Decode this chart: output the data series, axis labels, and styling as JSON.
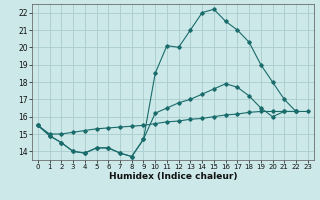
{
  "xlabel": "Humidex (Indice chaleur)",
  "bg_color": "#cce8e8",
  "grid_color": "#aacccc",
  "line_color": "#1a6b6b",
  "xlim": [
    -0.5,
    23.5
  ],
  "ylim": [
    13.5,
    22.5
  ],
  "xticks": [
    0,
    1,
    2,
    3,
    4,
    5,
    6,
    7,
    8,
    9,
    10,
    11,
    12,
    13,
    14,
    15,
    16,
    17,
    18,
    19,
    20,
    21,
    22,
    23
  ],
  "yticks": [
    14,
    15,
    16,
    17,
    18,
    19,
    20,
    21,
    22
  ],
  "line1_x": [
    0,
    1,
    2,
    3,
    4,
    5,
    6,
    7,
    8,
    9,
    10,
    11,
    12,
    13,
    14,
    15,
    16,
    17,
    18,
    19,
    20,
    21,
    22
  ],
  "line1_y": [
    15.5,
    14.9,
    14.5,
    14.0,
    13.9,
    14.2,
    14.2,
    13.9,
    13.7,
    14.7,
    18.5,
    20.1,
    20.0,
    21.0,
    22.0,
    22.2,
    21.5,
    21.0,
    20.3,
    19.0,
    18.0,
    17.0,
    16.3
  ],
  "line2_x": [
    0,
    1,
    2,
    3,
    4,
    5,
    6,
    7,
    8,
    9,
    10,
    11,
    12,
    13,
    14,
    15,
    16,
    17,
    18,
    19,
    20,
    21,
    22
  ],
  "line2_y": [
    15.5,
    14.9,
    14.5,
    14.0,
    13.9,
    14.2,
    14.2,
    13.9,
    13.7,
    14.7,
    16.2,
    16.5,
    16.8,
    17.0,
    17.3,
    17.6,
    17.9,
    17.7,
    17.2,
    16.5,
    16.0,
    16.3,
    16.3
  ],
  "line3_x": [
    0,
    1,
    2,
    3,
    4,
    5,
    6,
    7,
    8,
    9,
    10,
    11,
    12,
    13,
    14,
    15,
    16,
    17,
    18,
    19,
    20,
    21,
    22,
    23
  ],
  "line3_y": [
    15.5,
    15.0,
    15.0,
    15.1,
    15.2,
    15.3,
    15.35,
    15.4,
    15.45,
    15.5,
    15.6,
    15.7,
    15.75,
    15.85,
    15.9,
    16.0,
    16.1,
    16.15,
    16.25,
    16.3,
    16.3,
    16.3,
    16.3,
    16.3
  ]
}
